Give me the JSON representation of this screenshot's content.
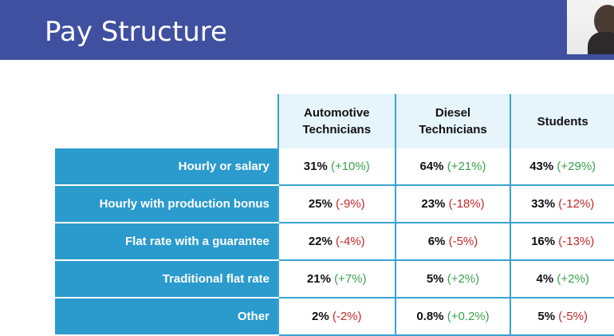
{
  "slide": {
    "title": "Pay Structure"
  },
  "table": {
    "columns": [
      "Automotive\nTechnicians",
      "Diesel\nTechnicians",
      "Students"
    ],
    "rows": [
      {
        "label": "Hourly or salary",
        "cells": [
          {
            "value": "31%",
            "change": "(+10%)",
            "direction": "pos"
          },
          {
            "value": "64%",
            "change": "(+21%)",
            "direction": "pos"
          },
          {
            "value": "43%",
            "change": "(+29%)",
            "direction": "pos"
          }
        ]
      },
      {
        "label": "Hourly with production bonus",
        "cells": [
          {
            "value": "25%",
            "change": "(-9%)",
            "direction": "neg"
          },
          {
            "value": "23%",
            "change": "(-18%)",
            "direction": "neg"
          },
          {
            "value": "33%",
            "change": "(-12%)",
            "direction": "neg"
          }
        ]
      },
      {
        "label": "Flat rate with a guarantee",
        "cells": [
          {
            "value": "22%",
            "change": "(-4%)",
            "direction": "neg"
          },
          {
            "value": "6%",
            "change": "(-5%)",
            "direction": "neg"
          },
          {
            "value": "16%",
            "change": "(-13%)",
            "direction": "neg"
          }
        ]
      },
      {
        "label": "Traditional flat rate",
        "cells": [
          {
            "value": "21%",
            "change": "(+7%)",
            "direction": "pos"
          },
          {
            "value": "5%",
            "change": "(+2%)",
            "direction": "pos"
          },
          {
            "value": "4%",
            "change": "(+2%)",
            "direction": "pos"
          }
        ]
      },
      {
        "label": "Other",
        "cells": [
          {
            "value": "2%",
            "change": "(-2%)",
            "direction": "neg"
          },
          {
            "value": "0.8%",
            "change": "(+0.2%)",
            "direction": "pos"
          },
          {
            "value": "5%",
            "change": "(-5%)",
            "direction": "neg"
          }
        ]
      }
    ]
  },
  "colors": {
    "title_bar": "#3f50a0",
    "row_label_bg": "#2b9bce",
    "header_bg": "#e6f4fb",
    "positive": "#3aa24a",
    "negative": "#c62828"
  },
  "icons": {
    "cursor": "mouse-pointer-icon",
    "webcam": "presenter-webcam"
  }
}
